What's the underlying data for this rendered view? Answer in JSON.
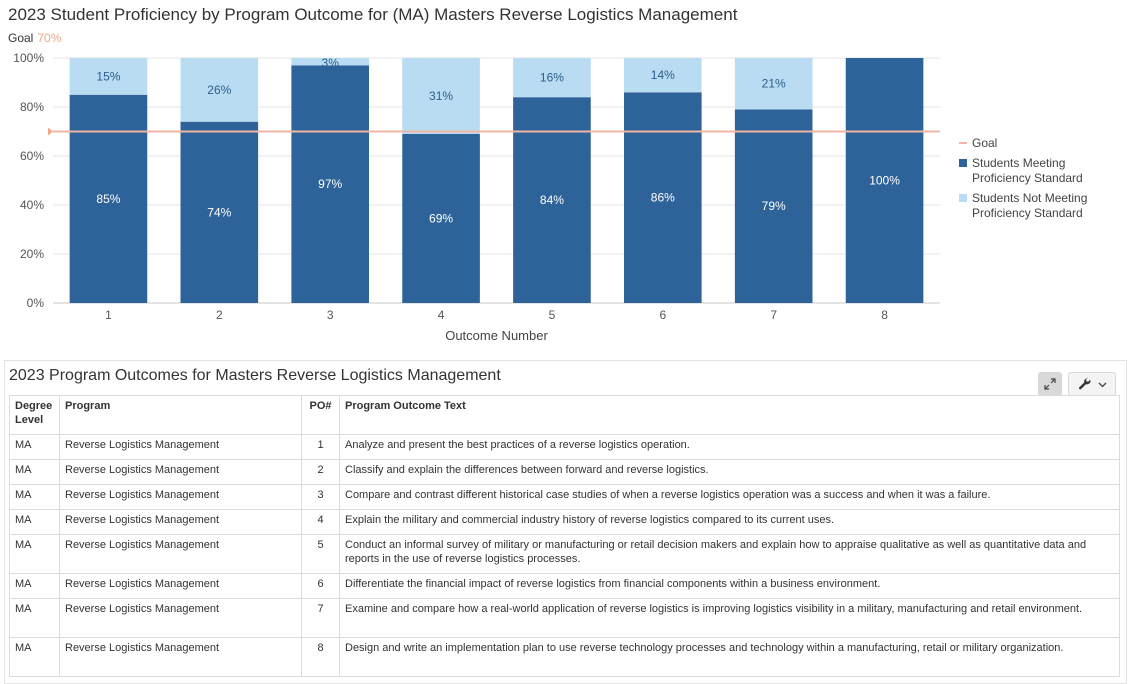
{
  "chart_title": "2023 Student Proficiency by Program Outcome for (MA) Masters Reverse Logistics Management",
  "goal_label": "Goal",
  "goal_value": "70%",
  "chart_data": {
    "type": "bar",
    "stacked": true,
    "percent": true,
    "categories": [
      "1",
      "2",
      "3",
      "4",
      "5",
      "6",
      "7",
      "8"
    ],
    "series": [
      {
        "name": "Students Meeting Proficiency Standard",
        "values": [
          85,
          74,
          97,
          69,
          84,
          86,
          79,
          100
        ],
        "labels": [
          "85%",
          "74%",
          "97%",
          "69%",
          "84%",
          "86%",
          "79%",
          "100%"
        ],
        "color": "#2e6399"
      },
      {
        "name": "Students Not Meeting Proficiency Standard",
        "values": [
          15,
          26,
          3,
          31,
          16,
          14,
          21,
          0
        ],
        "labels": [
          "15%",
          "26%",
          "3%",
          "31%",
          "16%",
          "14%",
          "21%",
          ""
        ],
        "color": "#b9dcf2"
      }
    ],
    "goal": {
      "name": "Goal",
      "value": 70,
      "color": "#f2b5a6"
    },
    "xlabel": "Outcome Number",
    "ylabel": "",
    "ylim": [
      0,
      100
    ],
    "yticks": [
      "0%",
      "20%",
      "40%",
      "60%",
      "80%",
      "100%"
    ],
    "grid": true,
    "legend_position": "right",
    "legend": [
      "Goal",
      "Students Meeting Proficiency Standard",
      "Students Not Meeting Proficiency Standard"
    ]
  },
  "table_panel": {
    "title": "2023 Program Outcomes for Masters Reverse Logistics Management",
    "headers": [
      "Degree Level",
      "Program",
      "PO#",
      "Program Outcome Text"
    ],
    "rows": [
      [
        "MA",
        "Reverse Logistics Management",
        "1",
        "Analyze and present the best practices of a reverse logistics operation."
      ],
      [
        "MA",
        "Reverse Logistics Management",
        "2",
        "Classify and explain the differences between forward and reverse logistics."
      ],
      [
        "MA",
        "Reverse Logistics Management",
        "3",
        "Compare and contrast different historical case studies of when a reverse logistics operation was a success and when it was a failure."
      ],
      [
        "MA",
        "Reverse Logistics Management",
        "4",
        "Explain the military and commercial industry history of reverse logistics compared to its current uses."
      ],
      [
        "MA",
        "Reverse Logistics Management",
        "5",
        "Conduct an informal survey of military or manufacturing or retail decision makers and explain how to appraise qualitative as well as quantitative data and reports in the use of reverse logistics processes."
      ],
      [
        "MA",
        "Reverse Logistics Management",
        "6",
        "Differentiate the financial impact of reverse logistics from financial components within a business environment."
      ],
      [
        "MA",
        "Reverse Logistics Management",
        "7",
        "Examine and compare how a real-world application of reverse logistics is improving logistics visibility in a military, manufacturing and retail environment."
      ],
      [
        "MA",
        "Reverse Logistics Management",
        "8",
        "Design and write an implementation plan to use reverse technology processes and technology within a manufacturing, retail or military organization."
      ]
    ]
  }
}
